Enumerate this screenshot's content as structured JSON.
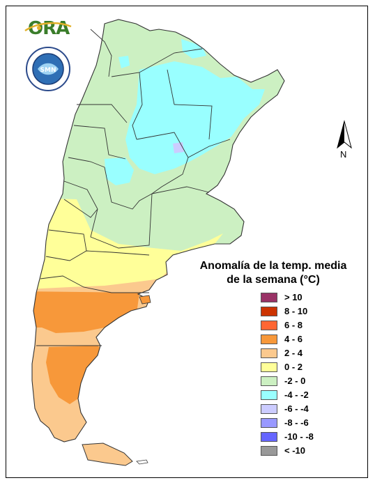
{
  "logo": {
    "text": "ORA"
  },
  "seal": {
    "text": "SERVICIO METEOROLÓGICO NACIONAL · ARGENTINA",
    "inner": "SMN"
  },
  "legend": {
    "title_line1": "Anomalía de la temp. media",
    "title_line2": "de la semana (°C)",
    "classes": [
      {
        "label": "> 10",
        "color": "#993366"
      },
      {
        "label": "8 - 10",
        "color": "#cc3300"
      },
      {
        "label": "6 - 8",
        "color": "#ff6633"
      },
      {
        "label": "4 - 6",
        "color": "#f7983a"
      },
      {
        "label": "2 - 4",
        "color": "#fbc98e"
      },
      {
        "label": "0 - 2",
        "color": "#ffff99"
      },
      {
        "label": "-2 - 0",
        "color": "#ccf0c2"
      },
      {
        "label": "-4 - -2",
        "color": "#99ffff"
      },
      {
        "label": "-6 - -4",
        "color": "#ccccff"
      },
      {
        "label": "-8 - -6",
        "color": "#9999ff"
      },
      {
        "label": "-10 - -8",
        "color": "#6666ff"
      },
      {
        "label": "< -10",
        "color": "#999999"
      }
    ]
  },
  "north_arrow": {
    "label": "N"
  },
  "map_colors": {
    "green": "#ccf0c2",
    "cyan": "#99ffff",
    "yellow": "#ffff99",
    "peach": "#fbc98e",
    "orange": "#f7983a",
    "lavender": "#ccccff",
    "border": "#333333"
  }
}
